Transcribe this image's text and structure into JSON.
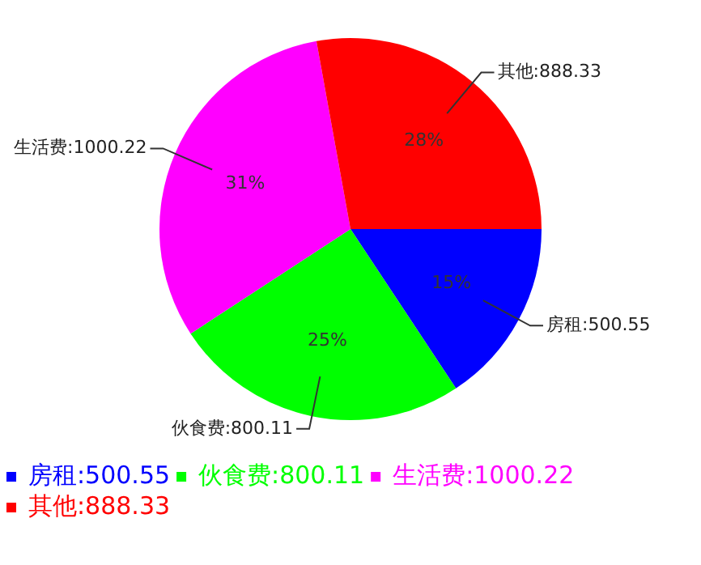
{
  "chart_data": {
    "type": "pie",
    "categories": [
      "房租:500.55",
      "伙食费:800.11",
      "生活费:1000.22",
      "其他:888.33"
    ],
    "values": [
      500.55,
      800.11,
      1000.22,
      888.33
    ],
    "colors": [
      "#0000ff",
      "#00ff00",
      "#ff00ff",
      "#ff0000"
    ],
    "annotations": [
      "15%",
      "25%",
      "31%",
      "28%"
    ],
    "legend": "bottom left"
  }
}
